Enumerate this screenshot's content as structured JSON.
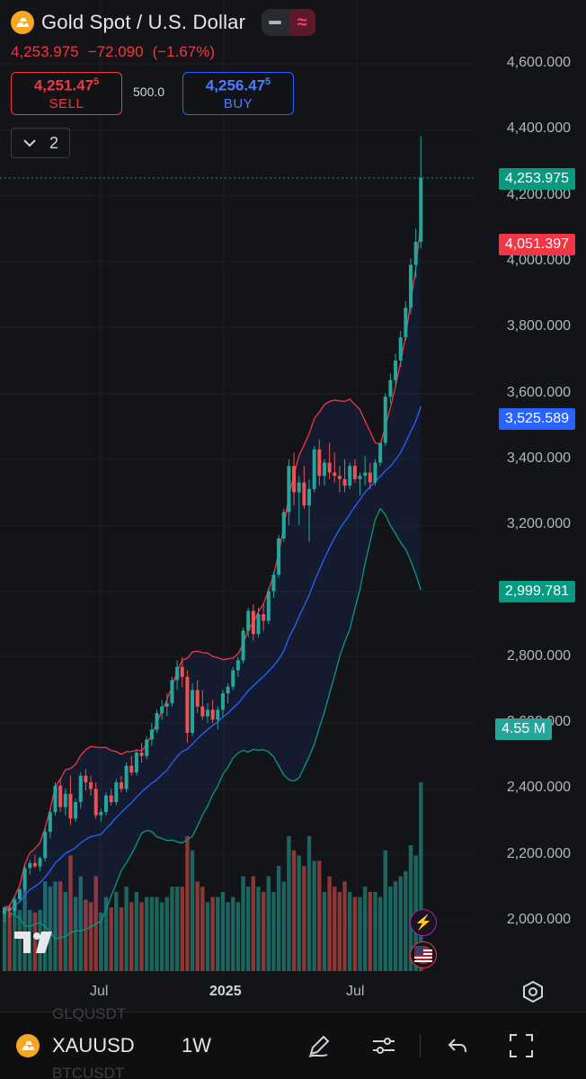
{
  "header": {
    "title": "Gold Spot / U.S. Dollar",
    "minus_icon": "minus-icon",
    "wave_icon": "approx-wave-icon",
    "last_price": "4,253.975",
    "change": "−72.090",
    "change_pct": "(−1.67%)"
  },
  "trade": {
    "sell_price_main": "4,251.47",
    "sell_price_sup": "5",
    "sell_label": "SELL",
    "spread": "500.0",
    "buy_price_main": "4,256.47",
    "buy_price_sup": "5",
    "buy_label": "BUY"
  },
  "indicators": {
    "count": "2",
    "icon": "chevron-down-icon"
  },
  "price_axis": {
    "labels": [
      "4,600.000",
      "4,400.000",
      "4,200.000",
      "4,000.000",
      "3,800.000",
      "3,600.000",
      "3,400.000",
      "3,200.000",
      "3,000.000",
      "2,800.000",
      "2,600.000",
      "2,400.000",
      "2,200.000",
      "2,000.000"
    ]
  },
  "price_tags": {
    "last": "4,253.975",
    "bb_upper_lower": "4,051.397",
    "bb_basis": "3,525.589",
    "bb_lower": "2,999.781",
    "volume": "4.55 M"
  },
  "time_axis": {
    "labels": [
      "Jul",
      "2025",
      "Jul"
    ]
  },
  "colors": {
    "up": "#26a69a",
    "down": "#ef5350",
    "bb_upper": "#f23645",
    "bb_basis": "#2962ff",
    "bb_lower": "#089981",
    "last_price": "#089981",
    "basis_tag": "#2962ff",
    "upper_tag": "#f23645"
  },
  "bottom_bar": {
    "ghost_above": "GLQUSDT",
    "ghost_below": "BTCUSDT",
    "symbol": "XAUUSD",
    "interval": "1W",
    "icons": [
      "pencil-icon",
      "sliders-icon",
      "undo-icon",
      "fullscreen-icon"
    ]
  },
  "chart_data": {
    "type": "candlestick",
    "symbol": "XAUUSD",
    "interval": "1W",
    "ylim": [
      1900,
      4600
    ],
    "candles_ohlc": [
      [
        2020,
        2045,
        1995,
        2040
      ],
      [
        2040,
        2050,
        2010,
        2030
      ],
      [
        2030,
        2075,
        2020,
        2065
      ],
      [
        2065,
        2100,
        2055,
        2095
      ],
      [
        2095,
        2170,
        2085,
        2160
      ],
      [
        2160,
        2185,
        2140,
        2175
      ],
      [
        2175,
        2200,
        2160,
        2165
      ],
      [
        2165,
        2195,
        2150,
        2190
      ],
      [
        2190,
        2280,
        2180,
        2270
      ],
      [
        2270,
        2340,
        2250,
        2330
      ],
      [
        2330,
        2420,
        2320,
        2410
      ],
      [
        2410,
        2430,
        2330,
        2345
      ],
      [
        2345,
        2400,
        2320,
        2385
      ],
      [
        2385,
        2440,
        2290,
        2310
      ],
      [
        2310,
        2370,
        2300,
        2360
      ],
      [
        2360,
        2450,
        2340,
        2440
      ],
      [
        2440,
        2460,
        2395,
        2420
      ],
      [
        2420,
        2440,
        2380,
        2400
      ],
      [
        2400,
        2420,
        2310,
        2320
      ],
      [
        2320,
        2340,
        2300,
        2330
      ],
      [
        2330,
        2390,
        2320,
        2380
      ],
      [
        2380,
        2400,
        2350,
        2360
      ],
      [
        2360,
        2430,
        2350,
        2420
      ],
      [
        2420,
        2440,
        2390,
        2400
      ],
      [
        2400,
        2480,
        2390,
        2470
      ],
      [
        2470,
        2500,
        2440,
        2450
      ],
      [
        2450,
        2520,
        2440,
        2510
      ],
      [
        2510,
        2540,
        2480,
        2500
      ],
      [
        2500,
        2560,
        2490,
        2550
      ],
      [
        2550,
        2600,
        2530,
        2580
      ],
      [
        2580,
        2640,
        2570,
        2630
      ],
      [
        2630,
        2670,
        2610,
        2650
      ],
      [
        2650,
        2690,
        2620,
        2660
      ],
      [
        2660,
        2740,
        2650,
        2730
      ],
      [
        2730,
        2790,
        2700,
        2770
      ],
      [
        2770,
        2800,
        2710,
        2740
      ],
      [
        2740,
        2760,
        2540,
        2570
      ],
      [
        2570,
        2720,
        2560,
        2700
      ],
      [
        2700,
        2730,
        2630,
        2650
      ],
      [
        2650,
        2700,
        2610,
        2620
      ],
      [
        2620,
        2660,
        2600,
        2640
      ],
      [
        2640,
        2670,
        2600,
        2610
      ],
      [
        2610,
        2650,
        2580,
        2640
      ],
      [
        2640,
        2700,
        2620,
        2690
      ],
      [
        2690,
        2720,
        2660,
        2710
      ],
      [
        2710,
        2770,
        2700,
        2760
      ],
      [
        2760,
        2800,
        2740,
        2790
      ],
      [
        2790,
        2890,
        2780,
        2880
      ],
      [
        2880,
        2950,
        2860,
        2940
      ],
      [
        2940,
        2960,
        2850,
        2870
      ],
      [
        2870,
        2950,
        2860,
        2930
      ],
      [
        2930,
        2960,
        2880,
        2910
      ],
      [
        2910,
        3010,
        2900,
        3000
      ],
      [
        3000,
        3060,
        2980,
        3050
      ],
      [
        3050,
        3170,
        3040,
        3160
      ],
      [
        3160,
        3250,
        3150,
        3240
      ],
      [
        3240,
        3400,
        3200,
        3380
      ],
      [
        3380,
        3420,
        3260,
        3300
      ],
      [
        3300,
        3350,
        3200,
        3330
      ],
      [
        3330,
        3380,
        3250,
        3260
      ],
      [
        3260,
        3340,
        3150,
        3310
      ],
      [
        3310,
        3440,
        3300,
        3430
      ],
      [
        3430,
        3460,
        3320,
        3350
      ],
      [
        3350,
        3400,
        3320,
        3390
      ],
      [
        3390,
        3450,
        3340,
        3360
      ],
      [
        3360,
        3420,
        3330,
        3350
      ],
      [
        3350,
        3380,
        3300,
        3340
      ],
      [
        3340,
        3400,
        3300,
        3320
      ],
      [
        3320,
        3390,
        3310,
        3380
      ],
      [
        3380,
        3400,
        3330,
        3340
      ],
      [
        3340,
        3360,
        3290,
        3350
      ],
      [
        3350,
        3410,
        3320,
        3360
      ],
      [
        3360,
        3390,
        3310,
        3330
      ],
      [
        3330,
        3400,
        3320,
        3390
      ],
      [
        3390,
        3450,
        3380,
        3450
      ],
      [
        3450,
        3600,
        3440,
        3590
      ],
      [
        3590,
        3660,
        3570,
        3640
      ],
      [
        3640,
        3720,
        3620,
        3700
      ],
      [
        3700,
        3790,
        3680,
        3770
      ],
      [
        3770,
        3880,
        3760,
        3860
      ],
      [
        3860,
        4010,
        3840,
        3990
      ],
      [
        3990,
        4100,
        3950,
        4060
      ],
      [
        4060,
        4380,
        4040,
        4254
      ]
    ]
  }
}
